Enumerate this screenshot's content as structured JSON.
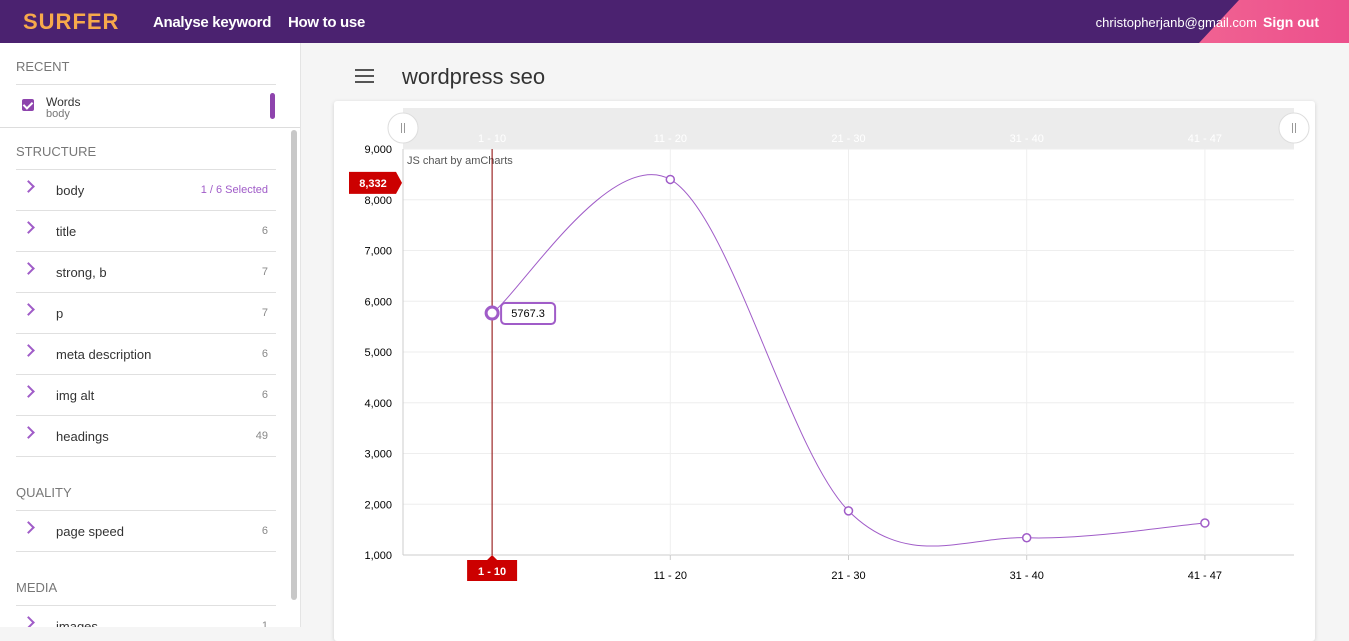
{
  "header": {
    "logo": "SURFER",
    "nav": [
      "Analyse keyword",
      "How to use"
    ],
    "email": "christopherjanb@gmail.com",
    "sign_out": "Sign out"
  },
  "sidebar": {
    "recent": {
      "title": "RECENT",
      "items": [
        {
          "label": "Words",
          "sublabel": "body"
        }
      ]
    },
    "sections": [
      {
        "title": "STRUCTURE",
        "items": [
          {
            "label": "body",
            "count": "1 / 6 Selected"
          },
          {
            "label": "title",
            "count": 6
          },
          {
            "label": "strong, b",
            "count": 7
          },
          {
            "label": "p",
            "count": 7
          },
          {
            "label": "meta description",
            "count": 6
          },
          {
            "label": "img alt",
            "count": 6
          },
          {
            "label": "headings",
            "count": 49
          }
        ]
      },
      {
        "title": "QUALITY",
        "items": [
          {
            "label": "page speed",
            "count": 6
          }
        ]
      },
      {
        "title": "MEDIA",
        "items": [
          {
            "label": "images",
            "count": 1
          }
        ]
      }
    ]
  },
  "page_title": "wordpress seo",
  "chart_data": {
    "type": "line",
    "categories": [
      "1 - 10",
      "11 - 20",
      "21 - 30",
      "31 - 40",
      "41 - 47"
    ],
    "values": [
      5767.3,
      8400,
      1870,
      1340,
      1630
    ],
    "color": "#a05cc8",
    "ylim": [
      1000,
      9000
    ],
    "yticks": [
      {
        "value": 1000,
        "label": "1,000"
      },
      {
        "value": 2000,
        "label": "2,000"
      },
      {
        "value": 3000,
        "label": "3,000"
      },
      {
        "value": 4000,
        "label": "4,000"
      },
      {
        "value": 5000,
        "label": "5,000"
      },
      {
        "value": 6000,
        "label": "6,000"
      },
      {
        "value": 7000,
        "label": "7,000"
      },
      {
        "value": 8000,
        "label": "8,000"
      },
      {
        "value": 9000,
        "label": "9,000"
      }
    ],
    "grid": true,
    "cursor_y": {
      "value": 8332,
      "label": "8,332"
    },
    "credit": "JS chart by amCharts"
  }
}
